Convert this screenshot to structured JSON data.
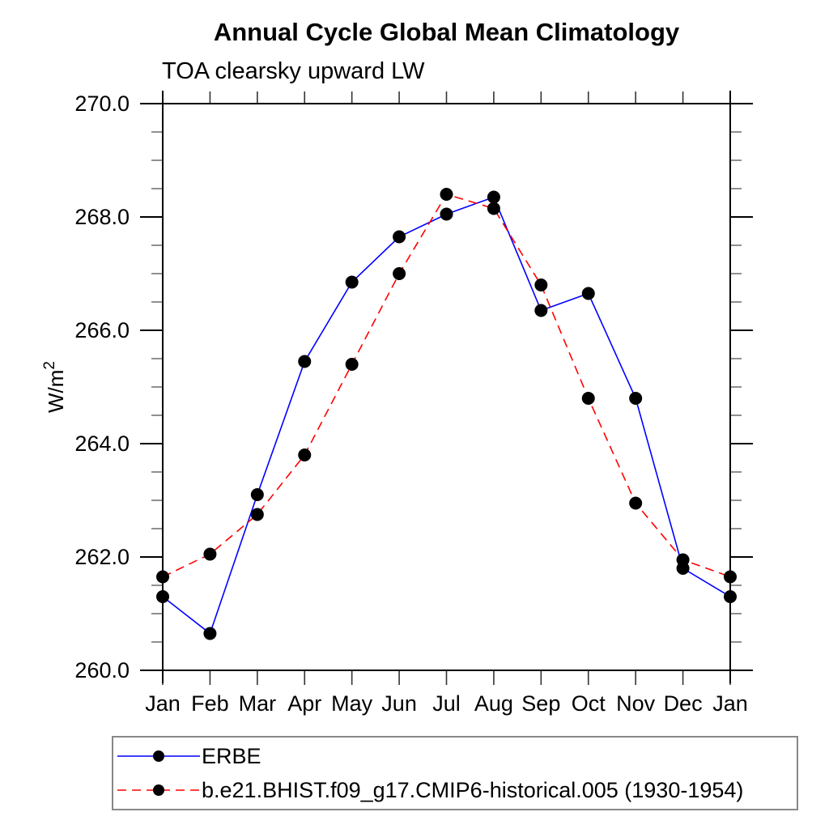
{
  "title": "Annual Cycle Global Mean Climatology",
  "subtitle": "TOA clearsky upward LW",
  "chart_data": {
    "type": "line",
    "x_categories": [
      "Jan",
      "Feb",
      "Mar",
      "Apr",
      "May",
      "Jun",
      "Jul",
      "Aug",
      "Sep",
      "Oct",
      "Nov",
      "Dec",
      "Jan"
    ],
    "ylabel": "W/m²",
    "ylabel_base": "W/m",
    "ylabel_sup": "2",
    "ylim": [
      260.0,
      270.0
    ],
    "ytick_major_interval": 2.0,
    "ytick_minor_interval": 0.5,
    "ytick_labels": [
      "260.0",
      "262.0",
      "264.0",
      "266.0",
      "268.0",
      "270.0"
    ],
    "grid": false,
    "legend_position": "bottom-left",
    "marker": "filled-circle",
    "marker_color": "#000000",
    "series": [
      {
        "name": "ERBE",
        "color": "#0000ff",
        "line_style": "solid",
        "values": [
          261.3,
          260.65,
          263.1,
          265.45,
          266.85,
          267.65,
          268.05,
          268.35,
          266.35,
          266.65,
          264.8,
          261.8,
          261.3
        ]
      },
      {
        "name": "b.e21.BHIST.f09_g17.CMIP6-historical.005 (1930-1954)",
        "color": "#ff0000",
        "line_style": "dashed",
        "values": [
          261.65,
          262.05,
          262.75,
          263.8,
          265.4,
          267.0,
          268.4,
          268.15,
          266.8,
          264.8,
          262.95,
          261.95,
          261.65
        ]
      }
    ]
  }
}
